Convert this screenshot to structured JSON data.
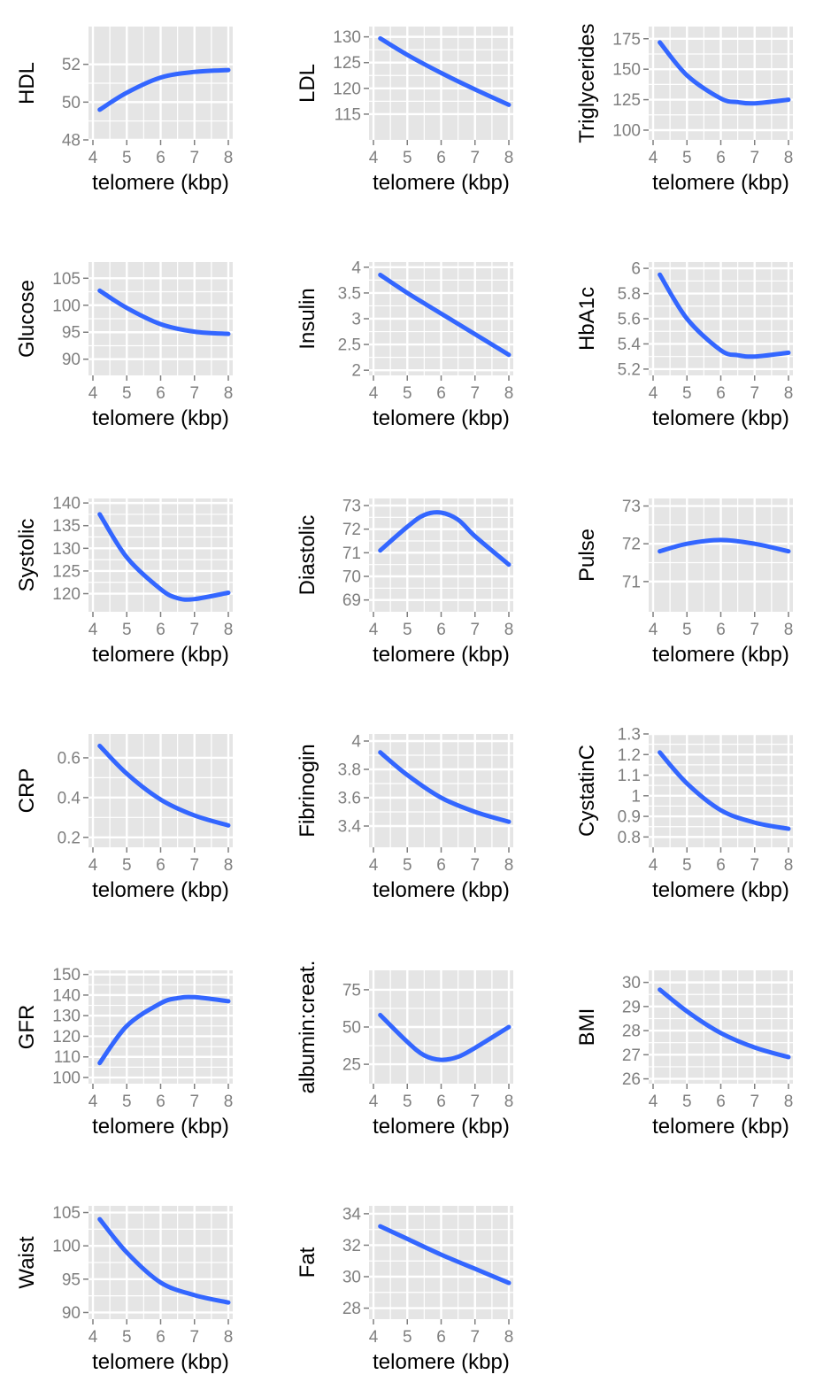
{
  "figure": {
    "background": "#ffffff",
    "panel_background": "#e5e5e5",
    "grid_color": "#ffffff",
    "line_color": "#3366ff"
  },
  "chart_data": [
    {
      "type": "line",
      "xlabel": "telomere (kbp)",
      "ylabel": "HDL",
      "xlim": [
        4,
        8
      ],
      "ylim": [
        48,
        54
      ],
      "xticks": [
        4,
        5,
        6,
        7,
        8
      ],
      "yticks": [
        48,
        50,
        52
      ],
      "x": [
        4.2,
        5,
        6,
        7,
        8
      ],
      "y": [
        49.6,
        50.5,
        51.3,
        51.6,
        51.7
      ]
    },
    {
      "type": "line",
      "xlabel": "telomere (kbp)",
      "ylabel": "LDL",
      "xlim": [
        4,
        8
      ],
      "ylim": [
        110,
        132
      ],
      "xticks": [
        4,
        5,
        6,
        7,
        8
      ],
      "yticks": [
        115,
        120,
        125,
        130
      ],
      "x": [
        4.2,
        5,
        6,
        7,
        8
      ],
      "y": [
        129.7,
        126.5,
        123,
        119.8,
        116.8
      ]
    },
    {
      "type": "line",
      "xlabel": "telomere (kbp)",
      "ylabel": "Triglycerides",
      "xlim": [
        4,
        8
      ],
      "ylim": [
        92,
        185
      ],
      "xticks": [
        4,
        5,
        6,
        7,
        8
      ],
      "yticks": [
        100,
        125,
        150,
        175
      ],
      "x": [
        4.2,
        5,
        6,
        6.5,
        7,
        8
      ],
      "y": [
        172,
        145,
        126,
        123,
        122,
        125
      ]
    },
    {
      "type": "line",
      "xlabel": "telomere (kbp)",
      "ylabel": "Glucose",
      "xlim": [
        4,
        8
      ],
      "ylim": [
        87,
        108
      ],
      "xticks": [
        4,
        5,
        6,
        7,
        8
      ],
      "yticks": [
        90,
        95,
        100,
        105
      ],
      "x": [
        4.2,
        5,
        6,
        7,
        8
      ],
      "y": [
        102.7,
        99.5,
        96.5,
        95.1,
        94.7
      ]
    },
    {
      "type": "line",
      "xlabel": "telomere (kbp)",
      "ylabel": "Insulin",
      "xlim": [
        4,
        8
      ],
      "ylim": [
        1.9,
        4.1
      ],
      "xticks": [
        4,
        5,
        6,
        7,
        8
      ],
      "yticks": [
        2.0,
        2.5,
        3.0,
        3.5,
        4.0
      ],
      "x": [
        4.2,
        5,
        6,
        7,
        8
      ],
      "y": [
        3.85,
        3.5,
        3.1,
        2.7,
        2.3
      ]
    },
    {
      "type": "line",
      "xlabel": "telomere (kbp)",
      "ylabel": "HbA1c",
      "xlim": [
        4,
        8
      ],
      "ylim": [
        5.15,
        6.05
      ],
      "xticks": [
        4,
        5,
        6,
        7,
        8
      ],
      "yticks": [
        5.2,
        5.4,
        5.6,
        5.8,
        6.0
      ],
      "x": [
        4.2,
        5,
        6,
        6.5,
        7,
        8
      ],
      "y": [
        5.95,
        5.6,
        5.35,
        5.31,
        5.3,
        5.33
      ]
    },
    {
      "type": "line",
      "xlabel": "telomere (kbp)",
      "ylabel": "Systolic",
      "xlim": [
        4,
        8
      ],
      "ylim": [
        116,
        141
      ],
      "xticks": [
        4,
        5,
        6,
        7,
        8
      ],
      "yticks": [
        120,
        125,
        130,
        135,
        140
      ],
      "x": [
        4.2,
        5,
        6,
        6.5,
        7,
        8
      ],
      "y": [
        137.5,
        128,
        121,
        119,
        118.8,
        120.2
      ]
    },
    {
      "type": "line",
      "xlabel": "telomere (kbp)",
      "ylabel": "Diastolic",
      "xlim": [
        4,
        8
      ],
      "ylim": [
        68.5,
        73.3
      ],
      "xticks": [
        4,
        5,
        6,
        7,
        8
      ],
      "yticks": [
        69,
        70,
        71,
        72,
        73
      ],
      "x": [
        4.2,
        5,
        5.5,
        6,
        6.5,
        7,
        8
      ],
      "y": [
        71.1,
        72.1,
        72.6,
        72.7,
        72.4,
        71.7,
        70.5
      ]
    },
    {
      "type": "line",
      "xlabel": "telomere (kbp)",
      "ylabel": "Pulse",
      "xlim": [
        4,
        8
      ],
      "ylim": [
        70.2,
        73.2
      ],
      "xticks": [
        4,
        5,
        6,
        7,
        8
      ],
      "yticks": [
        71,
        72,
        73
      ],
      "x": [
        4.2,
        5,
        6,
        7,
        8
      ],
      "y": [
        71.8,
        72.0,
        72.1,
        72.0,
        71.8
      ]
    },
    {
      "type": "line",
      "xlabel": "telomere (kbp)",
      "ylabel": "CRP",
      "xlim": [
        4,
        8
      ],
      "ylim": [
        0.15,
        0.72
      ],
      "xticks": [
        4,
        5,
        6,
        7,
        8
      ],
      "yticks": [
        0.2,
        0.4,
        0.6
      ],
      "x": [
        4.2,
        5,
        6,
        7,
        8
      ],
      "y": [
        0.66,
        0.52,
        0.39,
        0.31,
        0.26
      ]
    },
    {
      "type": "line",
      "xlabel": "telomere (kbp)",
      "ylabel": "Fibrinogin",
      "xlim": [
        4,
        8
      ],
      "ylim": [
        3.25,
        4.05
      ],
      "xticks": [
        4,
        5,
        6,
        7,
        8
      ],
      "yticks": [
        3.4,
        3.6,
        3.8,
        4.0
      ],
      "x": [
        4.2,
        5,
        6,
        7,
        8
      ],
      "y": [
        3.92,
        3.76,
        3.6,
        3.5,
        3.43
      ]
    },
    {
      "type": "line",
      "xlabel": "telomere (kbp)",
      "ylabel": "CystatinC",
      "xlim": [
        4,
        8
      ],
      "ylim": [
        0.75,
        1.3
      ],
      "xticks": [
        4,
        5,
        6,
        7,
        8
      ],
      "yticks": [
        0.8,
        0.9,
        1.0,
        1.1,
        1.2,
        1.3
      ],
      "x": [
        4.2,
        5,
        6,
        7,
        8
      ],
      "y": [
        1.21,
        1.06,
        0.93,
        0.87,
        0.84
      ]
    },
    {
      "type": "line",
      "xlabel": "telomere (kbp)",
      "ylabel": "GFR",
      "xlim": [
        4,
        8
      ],
      "ylim": [
        97,
        152
      ],
      "xticks": [
        4,
        5,
        6,
        7,
        8
      ],
      "yticks": [
        100,
        110,
        120,
        130,
        140,
        150
      ],
      "x": [
        4.2,
        5,
        6,
        6.5,
        7,
        8
      ],
      "y": [
        107,
        125,
        136,
        138.5,
        139,
        137
      ]
    },
    {
      "type": "line",
      "xlabel": "telomere (kbp)",
      "ylabel": "albumin:creat.",
      "xlim": [
        4,
        8
      ],
      "ylim": [
        12,
        88
      ],
      "xticks": [
        4,
        5,
        6,
        7,
        8
      ],
      "yticks": [
        25,
        50,
        75
      ],
      "x": [
        4.2,
        5,
        5.5,
        6,
        6.5,
        7,
        8
      ],
      "y": [
        58,
        40,
        31,
        28,
        30,
        36,
        50
      ]
    },
    {
      "type": "line",
      "xlabel": "telomere (kbp)",
      "ylabel": "BMI",
      "xlim": [
        4,
        8
      ],
      "ylim": [
        25.8,
        30.5
      ],
      "xticks": [
        4,
        5,
        6,
        7,
        8
      ],
      "yticks": [
        26,
        27,
        28,
        29,
        30
      ],
      "x": [
        4.2,
        5,
        6,
        7,
        8
      ],
      "y": [
        29.7,
        28.8,
        27.9,
        27.3,
        26.9
      ]
    },
    {
      "type": "line",
      "xlabel": "telomere (kbp)",
      "ylabel": "Waist",
      "xlim": [
        4,
        8
      ],
      "ylim": [
        89,
        106
      ],
      "xticks": [
        4,
        5,
        6,
        7,
        8
      ],
      "yticks": [
        90,
        95,
        100,
        105
      ],
      "x": [
        4.2,
        5,
        6,
        7,
        8
      ],
      "y": [
        104,
        99,
        94.5,
        92.6,
        91.5
      ]
    },
    {
      "type": "line",
      "xlabel": "telomere (kbp)",
      "ylabel": "Fat",
      "xlim": [
        4,
        8
      ],
      "ylim": [
        27.3,
        34.5
      ],
      "xticks": [
        4,
        5,
        6,
        7,
        8
      ],
      "yticks": [
        28,
        30,
        32,
        34
      ],
      "x": [
        4.2,
        5,
        6,
        7,
        8
      ],
      "y": [
        33.2,
        32.4,
        31.4,
        30.5,
        29.6
      ]
    }
  ]
}
